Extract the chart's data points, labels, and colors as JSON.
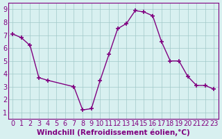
{
  "x": [
    0,
    1,
    2,
    3,
    4,
    7,
    8,
    9,
    10,
    11,
    12,
    13,
    14,
    15,
    16,
    17,
    18,
    19,
    20,
    21,
    22,
    23
  ],
  "y": [
    7.1,
    6.8,
    6.2,
    3.7,
    3.5,
    3.0,
    1.2,
    1.3,
    3.5,
    5.5,
    7.5,
    7.9,
    8.9,
    8.8,
    8.5,
    6.5,
    5.0,
    5.0,
    3.8,
    3.1,
    3.1,
    2.8
  ],
  "line_color": "#800080",
  "marker": "P",
  "bg_color": "#d8f0f0",
  "grid_color": "#a0c8c8",
  "xlabel": "Windchill (Refroidissement éolien,°C)",
  "xlabel_color": "#800080",
  "xlim": [
    -0.5,
    23.5
  ],
  "ylim": [
    0.5,
    9.5
  ],
  "yticks": [
    1,
    2,
    3,
    4,
    5,
    6,
    7,
    8,
    9
  ],
  "xticks": [
    0,
    1,
    2,
    3,
    4,
    5,
    6,
    7,
    8,
    9,
    10,
    11,
    12,
    13,
    14,
    15,
    16,
    17,
    18,
    19,
    20,
    21,
    22,
    23
  ],
  "tick_color": "#800080",
  "font_color": "#800080",
  "font_size": 7,
  "xlabel_fontsize": 7.5,
  "linewidth": 1.0,
  "markersize": 4
}
